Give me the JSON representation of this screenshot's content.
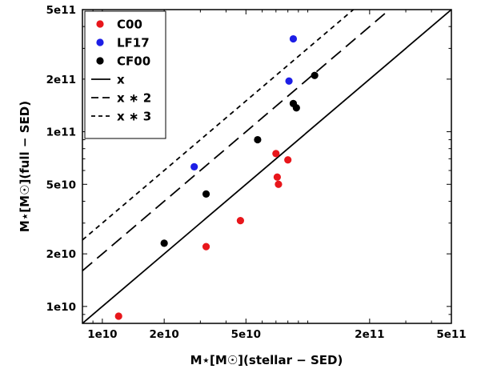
{
  "chart_data": {
    "type": "scatter",
    "xscale": "log",
    "yscale": "log",
    "xlim": [
      8000000000,
      500000000000
    ],
    "ylim": [
      8000000000,
      500000000000
    ],
    "xlabel": "M⋆[M☉](stellar − SED)",
    "ylabel": "M⋆[M☉](full − SED)",
    "xticks": [
      {
        "value": 10000000000,
        "label": "1e10"
      },
      {
        "value": 20000000000,
        "label": "2e10"
      },
      {
        "value": 50000000000,
        "label": "5e10"
      },
      {
        "value": 200000000000,
        "label": "2e11"
      },
      {
        "value": 500000000000,
        "label": "5e11"
      }
    ],
    "yticks": [
      {
        "value": 10000000000,
        "label": "1e10"
      },
      {
        "value": 20000000000,
        "label": "2e10"
      },
      {
        "value": 50000000000,
        "label": "5e10"
      },
      {
        "value": 100000000000,
        "label": "1e11"
      },
      {
        "value": 200000000000,
        "label": "2e11"
      },
      {
        "value": 500000000000,
        "label": "5e11"
      }
    ],
    "series": [
      {
        "name": "C00",
        "color": "#e8161b",
        "points": [
          {
            "x": 12000000000,
            "y": 8800000000
          },
          {
            "x": 32000000000,
            "y": 22000000000
          },
          {
            "x": 47000000000,
            "y": 31000000000
          },
          {
            "x": 70000000000,
            "y": 75000000000
          },
          {
            "x": 71000000000,
            "y": 55000000000
          },
          {
            "x": 72000000000,
            "y": 50000000000
          },
          {
            "x": 80000000000,
            "y": 69000000000
          }
        ]
      },
      {
        "name": "LF17",
        "color": "#1d1ee6",
        "points": [
          {
            "x": 28000000000,
            "y": 63000000000
          },
          {
            "x": 81000000000,
            "y": 195000000000
          },
          {
            "x": 85000000000,
            "y": 340000000000
          }
        ]
      },
      {
        "name": "CF00",
        "color": "#000000",
        "points": [
          {
            "x": 20000000000,
            "y": 23000000000
          },
          {
            "x": 32000000000,
            "y": 44000000000
          },
          {
            "x": 57000000000,
            "y": 90000000000
          },
          {
            "x": 85000000000,
            "y": 145000000000
          },
          {
            "x": 88000000000,
            "y": 137000000000
          },
          {
            "x": 108000000000,
            "y": 210000000000
          }
        ]
      }
    ],
    "lines": [
      {
        "name": "x",
        "factor": 1,
        "dash": "solid"
      },
      {
        "name": "x ∗ 2",
        "factor": 2,
        "dash": "long-dash"
      },
      {
        "name": "x ∗ 3",
        "factor": 3,
        "dash": "short-dash"
      }
    ],
    "legend_position": "top-left"
  }
}
